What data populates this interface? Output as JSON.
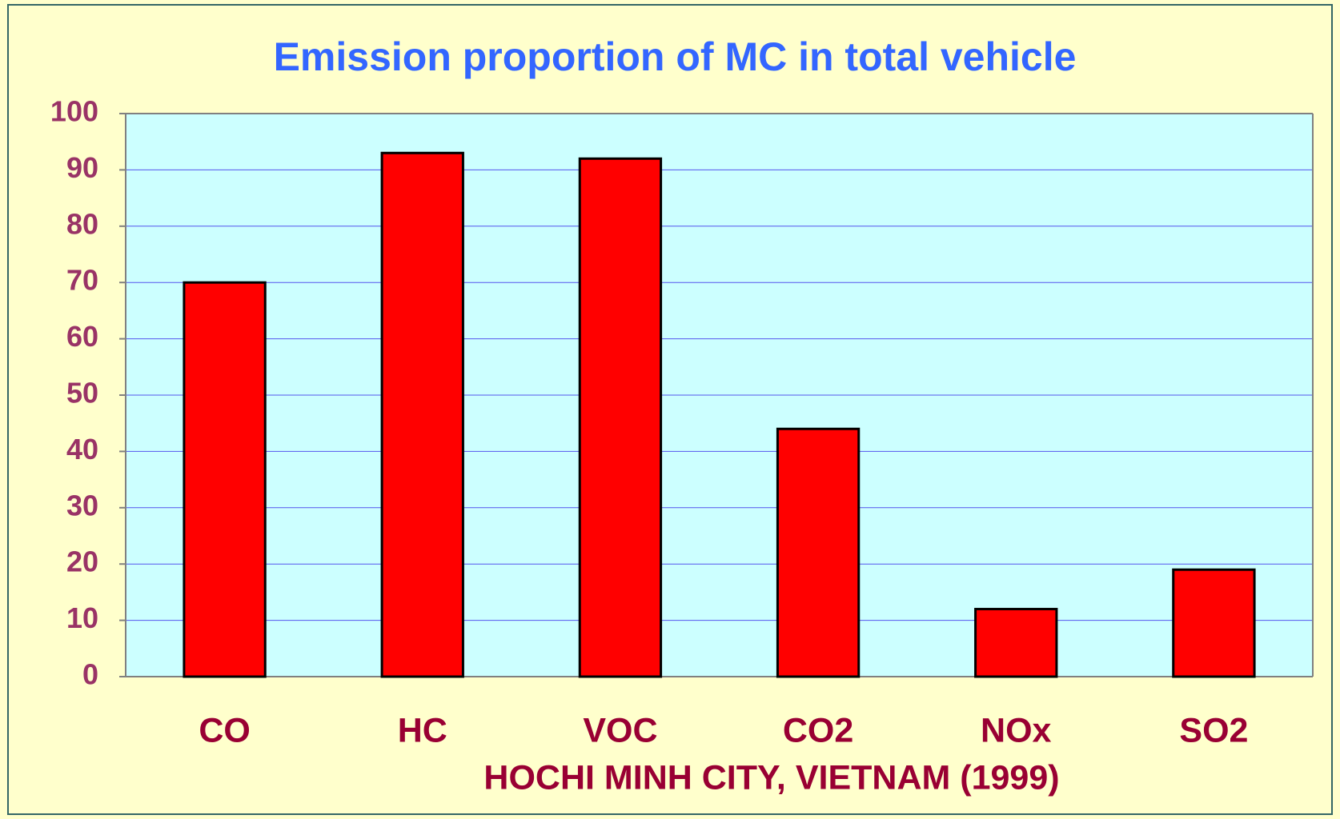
{
  "chart_data": {
    "type": "bar",
    "title": "Emission proportion of MC in total vehicle",
    "xlabel": "HOCHI MINH CITY, VIETNAM (1999)",
    "categories": [
      "CO",
      "HC",
      "VOC",
      "CO2",
      "NOx",
      "SO2"
    ],
    "values": [
      70,
      93,
      92,
      44,
      12,
      19
    ],
    "color": "#ff0000",
    "ylim": [
      0,
      100
    ],
    "yticks": [
      0,
      10,
      20,
      30,
      40,
      50,
      60,
      70,
      80,
      90,
      100
    ],
    "grid": true
  }
}
